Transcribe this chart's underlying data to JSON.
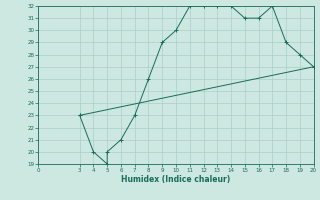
{
  "xlabel": "Humidex (Indice chaleur)",
  "ylabel": "",
  "bg_color": "#cce8e0",
  "line_color": "#1a6b5a",
  "grid_color": "#aacfc8",
  "xlim": [
    0,
    20
  ],
  "ylim": [
    19,
    32
  ],
  "xticks": [
    0,
    3,
    4,
    5,
    6,
    7,
    8,
    9,
    10,
    11,
    12,
    13,
    14,
    15,
    16,
    17,
    18,
    19,
    20
  ],
  "yticks": [
    19,
    20,
    21,
    22,
    23,
    24,
    25,
    26,
    27,
    28,
    29,
    30,
    31,
    32
  ],
  "line1_x": [
    3,
    4,
    5,
    5,
    6,
    7,
    8,
    9,
    10,
    11,
    12,
    13,
    14,
    15,
    16,
    17,
    18,
    19,
    20
  ],
  "line1_y": [
    23,
    20,
    19,
    20,
    21,
    23,
    26,
    29,
    30,
    32,
    32,
    32,
    32,
    31,
    31,
    32,
    29,
    28,
    27
  ],
  "line2_x": [
    3,
    20
  ],
  "line2_y": [
    23,
    27
  ]
}
